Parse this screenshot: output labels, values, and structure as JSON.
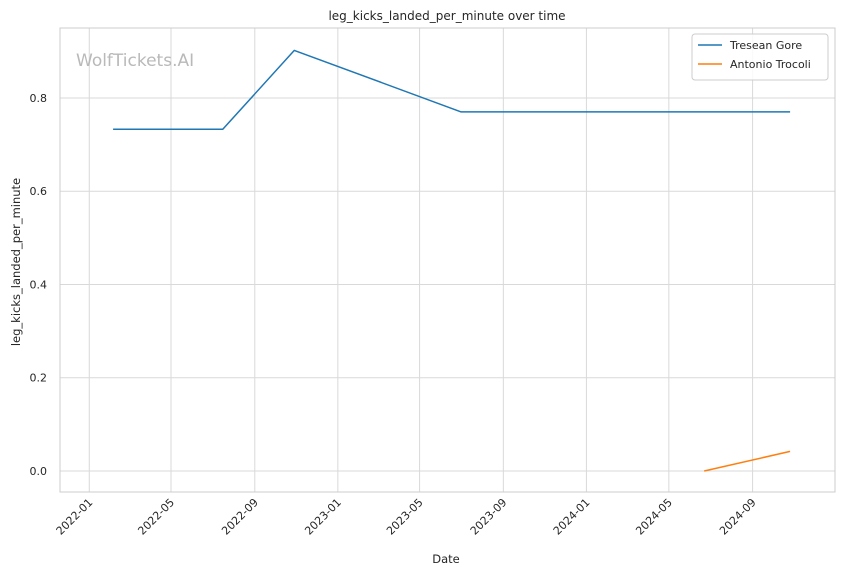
{
  "watermark": "WolfTickets.AI",
  "chart_data": {
    "type": "line",
    "title": "leg_kicks_landed_per_minute over time",
    "xlabel": "Date",
    "ylabel": "leg_kicks_landed_per_minute",
    "x_type": "date",
    "xlim": [
      "2021-11-19",
      "2024-12-31"
    ],
    "ylim": [
      -0.045,
      0.95
    ],
    "xticks": [
      "2022-01-01",
      "2022-05-01",
      "2022-09-01",
      "2023-01-01",
      "2023-05-01",
      "2023-09-01",
      "2024-01-01",
      "2024-05-01",
      "2024-09-01"
    ],
    "xtick_labels": [
      "2022-01",
      "2022-05",
      "2022-09",
      "2023-01",
      "2023-05",
      "2023-09",
      "2024-01",
      "2024-05",
      "2024-09"
    ],
    "yticks": [
      0.0,
      0.2,
      0.4,
      0.6,
      0.8
    ],
    "ytick_labels": [
      "0.0",
      "0.2",
      "0.4",
      "0.6",
      "0.8"
    ],
    "grid": true,
    "legend_position": "top-right",
    "series": [
      {
        "name": "Tresean Gore",
        "color": "#1f77b4",
        "x": [
          "2022-02-05",
          "2022-07-16",
          "2022-10-29",
          "2023-07-01",
          "2024-10-26"
        ],
        "y": [
          0.733,
          0.733,
          0.902,
          0.77,
          0.77
        ]
      },
      {
        "name": "Antonio Trocoli",
        "color": "#ff7f0e",
        "x": [
          "2024-06-22",
          "2024-10-26"
        ],
        "y": [
          0.0,
          0.042
        ]
      }
    ]
  }
}
